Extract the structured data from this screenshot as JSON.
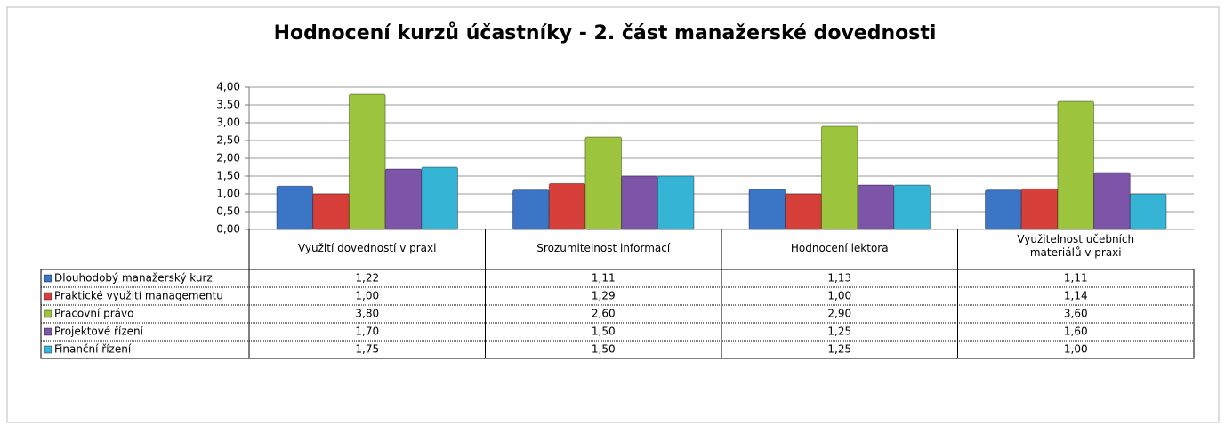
{
  "chart_data": {
    "type": "bar",
    "title": "Hodnocení kurzů účastníky - 2. část manažerské dovednosti",
    "categories": [
      "Využití dovedností v praxi",
      "Srozumitelnost informací",
      "Hodnocení lektora",
      "Využitelnost učebních materiálů v praxi"
    ],
    "series": [
      {
        "name": "Dlouhodobý manažerský kurz",
        "color": "#3b76c6",
        "values": [
          1.22,
          1.11,
          1.13,
          1.11
        ],
        "value_labels": [
          "1,22",
          "1,11",
          "1,13",
          "1,11"
        ]
      },
      {
        "name": "Praktické využití managementu",
        "color": "#d63f3a",
        "values": [
          1.0,
          1.29,
          1.0,
          1.14
        ],
        "value_labels": [
          "1,00",
          "1,29",
          "1,00",
          "1,14"
        ]
      },
      {
        "name": "Pracovní právo",
        "color": "#9cc43d",
        "values": [
          3.8,
          2.6,
          2.9,
          3.6
        ],
        "value_labels": [
          "3,80",
          "2,60",
          "2,90",
          "3,60"
        ]
      },
      {
        "name": "Projektové řízení",
        "color": "#7c55a8",
        "values": [
          1.7,
          1.5,
          1.25,
          1.6
        ],
        "value_labels": [
          "1,70",
          "1,50",
          "1,25",
          "1,60"
        ]
      },
      {
        "name": "Finanční řízení",
        "color": "#35b4d6",
        "values": [
          1.75,
          1.5,
          1.25,
          1.0
        ],
        "value_labels": [
          "1,75",
          "1,50",
          "1,25",
          "1,00"
        ]
      }
    ],
    "ylim": [
      0,
      4
    ],
    "yticks": [
      {
        "value": 0,
        "label": "0,00"
      },
      {
        "value": 0.5,
        "label": "0,50"
      },
      {
        "value": 1,
        "label": "1,00"
      },
      {
        "value": 1.5,
        "label": "1,50"
      },
      {
        "value": 2,
        "label": "2,00"
      },
      {
        "value": 2.5,
        "label": "2,50"
      },
      {
        "value": 3,
        "label": "3,00"
      },
      {
        "value": 3.5,
        "label": "3,50"
      },
      {
        "value": 4,
        "label": "4,00"
      }
    ],
    "grid": true
  }
}
